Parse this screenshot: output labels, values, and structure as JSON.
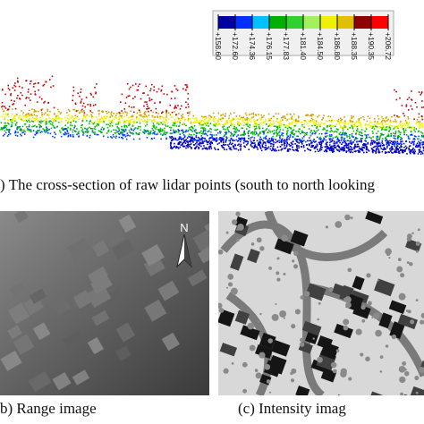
{
  "colorbar": {
    "labels": [
      "+158.60",
      "+172.60",
      "+174.36",
      "+176.15",
      "+177.83",
      "+181.40",
      "+184.50",
      "+186.80",
      "+188.35",
      "+190.35",
      "+206.72"
    ]
  },
  "captions": {
    "a": ") The cross-section of raw lidar points (south to north looking",
    "b": "b) Range image",
    "c": "(c) Intensity imag"
  },
  "compass": {
    "label": "N"
  }
}
